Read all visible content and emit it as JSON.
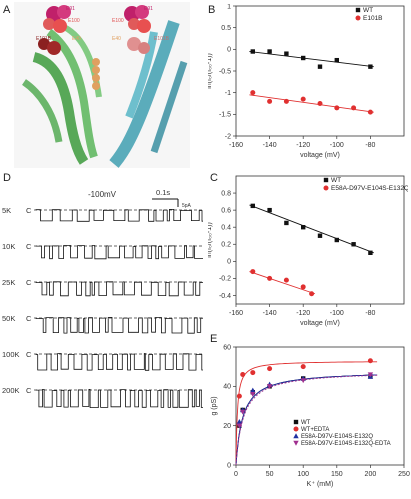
{
  "letters": {
    "a": "A",
    "b": "B",
    "c": "C",
    "d": "D",
    "e": "E"
  },
  "struct_labels": {
    "l1": "E91",
    "l2": "E91",
    "l3": "E100",
    "l4": "E100",
    "l5": "E101B",
    "l6": "E101B",
    "l7": "E40",
    "l8": "E40"
  },
  "trace_panel": {
    "voltage": "-100mV",
    "time_scale": "0.1s",
    "current_scale": "5pA",
    "closed_mark": "C",
    "rows": [
      {
        "label": "5K",
        "seed": 3,
        "openness": 0.25
      },
      {
        "label": "10K",
        "seed": 7,
        "openness": 0.35
      },
      {
        "label": "25K",
        "seed": 11,
        "openness": 0.45
      },
      {
        "label": "50K",
        "seed": 17,
        "openness": 0.5
      },
      {
        "label": "100K",
        "seed": 23,
        "openness": 0.6
      },
      {
        "label": "200K",
        "seed": 31,
        "openness": 0.7
      }
    ]
  },
  "chart_data": [
    {
      "panel": "B",
      "type": "scatter",
      "xlabel": "voltage (mV)",
      "ylabel": "ln(I₀/(I₀₀-1))",
      "xlim": [
        -160,
        -60
      ],
      "ylim": [
        -2,
        1
      ],
      "xticks": [
        "-160",
        "-140",
        "-120",
        "-100",
        "-80"
      ],
      "yticks": [
        "1",
        "0.5",
        "0",
        "-0.5",
        "-1",
        "-1.5",
        "-2"
      ],
      "series": [
        {
          "name": "WT",
          "color": "#111111",
          "marker": "square",
          "x": [
            -150,
            -140,
            -130,
            -120,
            -110,
            -100,
            -80
          ],
          "y": [
            -0.05,
            -0.05,
            -0.1,
            -0.2,
            -0.4,
            -0.25,
            -0.4
          ],
          "fit": [
            [
              -152,
              -0.05
            ],
            [
              -78,
              -0.4
            ]
          ]
        },
        {
          "name": "E101B",
          "color": "#e03030",
          "marker": "circle",
          "x": [
            -150,
            -140,
            -130,
            -120,
            -110,
            -100,
            -90,
            -80
          ],
          "y": [
            -1.0,
            -1.2,
            -1.2,
            -1.15,
            -1.25,
            -1.35,
            -1.35,
            -1.45
          ],
          "fit": [
            [
              -152,
              -1.05
            ],
            [
              -78,
              -1.45
            ]
          ]
        }
      ]
    },
    {
      "panel": "C",
      "type": "scatter",
      "xlabel": "voltage (mV)",
      "ylabel": "ln(I₀/(I₀₀-1))",
      "xlim": [
        -160,
        -60
      ],
      "ylim": [
        -0.5,
        1
      ],
      "xticks": [
        "-160",
        "-140",
        "-120",
        "-100",
        "-80"
      ],
      "yticks": [
        "0.8",
        "0.6",
        "0.4",
        "0.2",
        "0",
        "-0.2",
        "-0.4"
      ],
      "series": [
        {
          "name": "WT",
          "color": "#111111",
          "marker": "square",
          "x": [
            -150,
            -140,
            -130,
            -120,
            -110,
            -100,
            -90,
            -80
          ],
          "y": [
            0.65,
            0.6,
            0.45,
            0.4,
            0.3,
            0.25,
            0.2,
            0.1
          ],
          "fit": [
            [
              -152,
              0.66
            ],
            [
              -78,
              0.1
            ]
          ]
        },
        {
          "name": "E58A-D97V-E104S-E132Q",
          "color": "#e03030",
          "marker": "circle",
          "x": [
            -150,
            -140,
            -130,
            -120,
            -115
          ],
          "y": [
            -0.12,
            -0.2,
            -0.22,
            -0.3,
            -0.38
          ],
          "fit": [
            [
              -152,
              -0.12
            ],
            [
              -113,
              -0.38
            ]
          ]
        }
      ]
    },
    {
      "panel": "E",
      "type": "line",
      "xlabel": "K⁺ (mM)",
      "ylabel": "g (pS)",
      "xlim": [
        0,
        250
      ],
      "ylim": [
        0,
        60
      ],
      "xticks": [
        "0",
        "50",
        "100",
        "150",
        "200",
        "250"
      ],
      "yticks": [
        "60",
        "40",
        "20",
        "0"
      ],
      "series": [
        {
          "name": "WT",
          "color": "#111111",
          "marker": "square",
          "x": [
            5,
            10,
            25,
            50,
            100,
            200
          ],
          "y": [
            20,
            28,
            37,
            40,
            44,
            45
          ],
          "gmax": 48,
          "kd": 10
        },
        {
          "name": "WT+EDTA",
          "color": "#e03030",
          "marker": "circle",
          "x": [
            5,
            10,
            25,
            50,
            100,
            200
          ],
          "y": [
            35,
            46,
            47,
            49,
            50,
            53
          ],
          "gmax": 53,
          "kd": 2
        },
        {
          "name": "E58A-D97V-E104S-E132Q",
          "color": "#2030a0",
          "marker": "triangle-up",
          "x": [
            5,
            10,
            25,
            50,
            100,
            200
          ],
          "y": [
            22,
            28,
            38,
            41,
            44,
            45
          ],
          "gmax": 48,
          "kd": 10
        },
        {
          "name": "E58A-D97V-E104S-E132Q-EDTA",
          "color": "#a03090",
          "marker": "triangle-down",
          "x": [
            5,
            10,
            25,
            50,
            100,
            200
          ],
          "y": [
            20,
            27,
            36,
            40,
            43,
            46
          ],
          "gmax": 48,
          "kd": 11
        }
      ]
    }
  ]
}
